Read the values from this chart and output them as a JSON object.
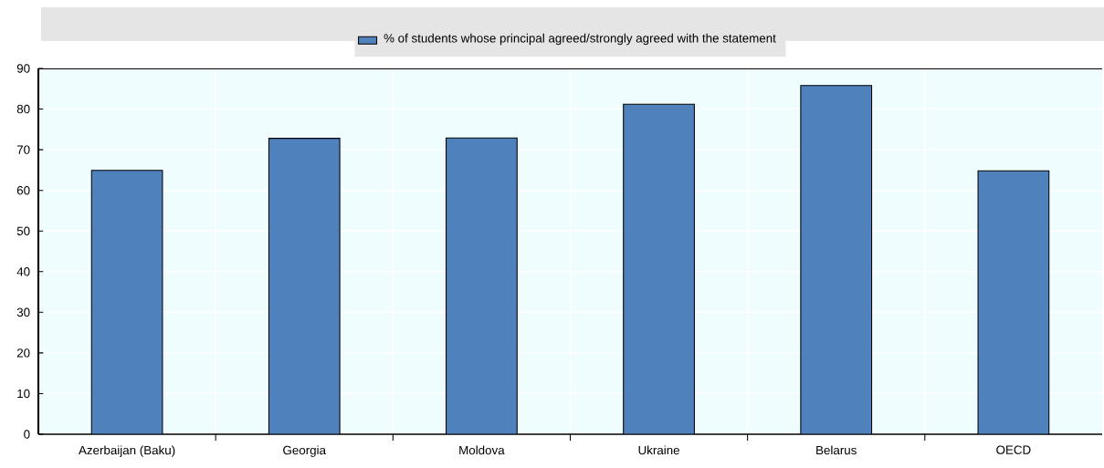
{
  "chart_data": {
    "type": "bar",
    "categories": [
      "Azerbaijan (Baku)",
      "Georgia",
      "Moldova",
      "Ukraine",
      "Belarus",
      "OECD"
    ],
    "series": [
      {
        "name": "% of students whose principal agreed/strongly agreed with the statement",
        "color": "#4f81bd",
        "values": [
          64.9,
          72.8,
          72.9,
          81.2,
          85.8,
          64.8
        ]
      }
    ],
    "ylim": [
      0,
      90
    ],
    "yticks": [
      0,
      10,
      20,
      30,
      40,
      50,
      60,
      70,
      80,
      90
    ],
    "grid": true,
    "legend": "top"
  }
}
